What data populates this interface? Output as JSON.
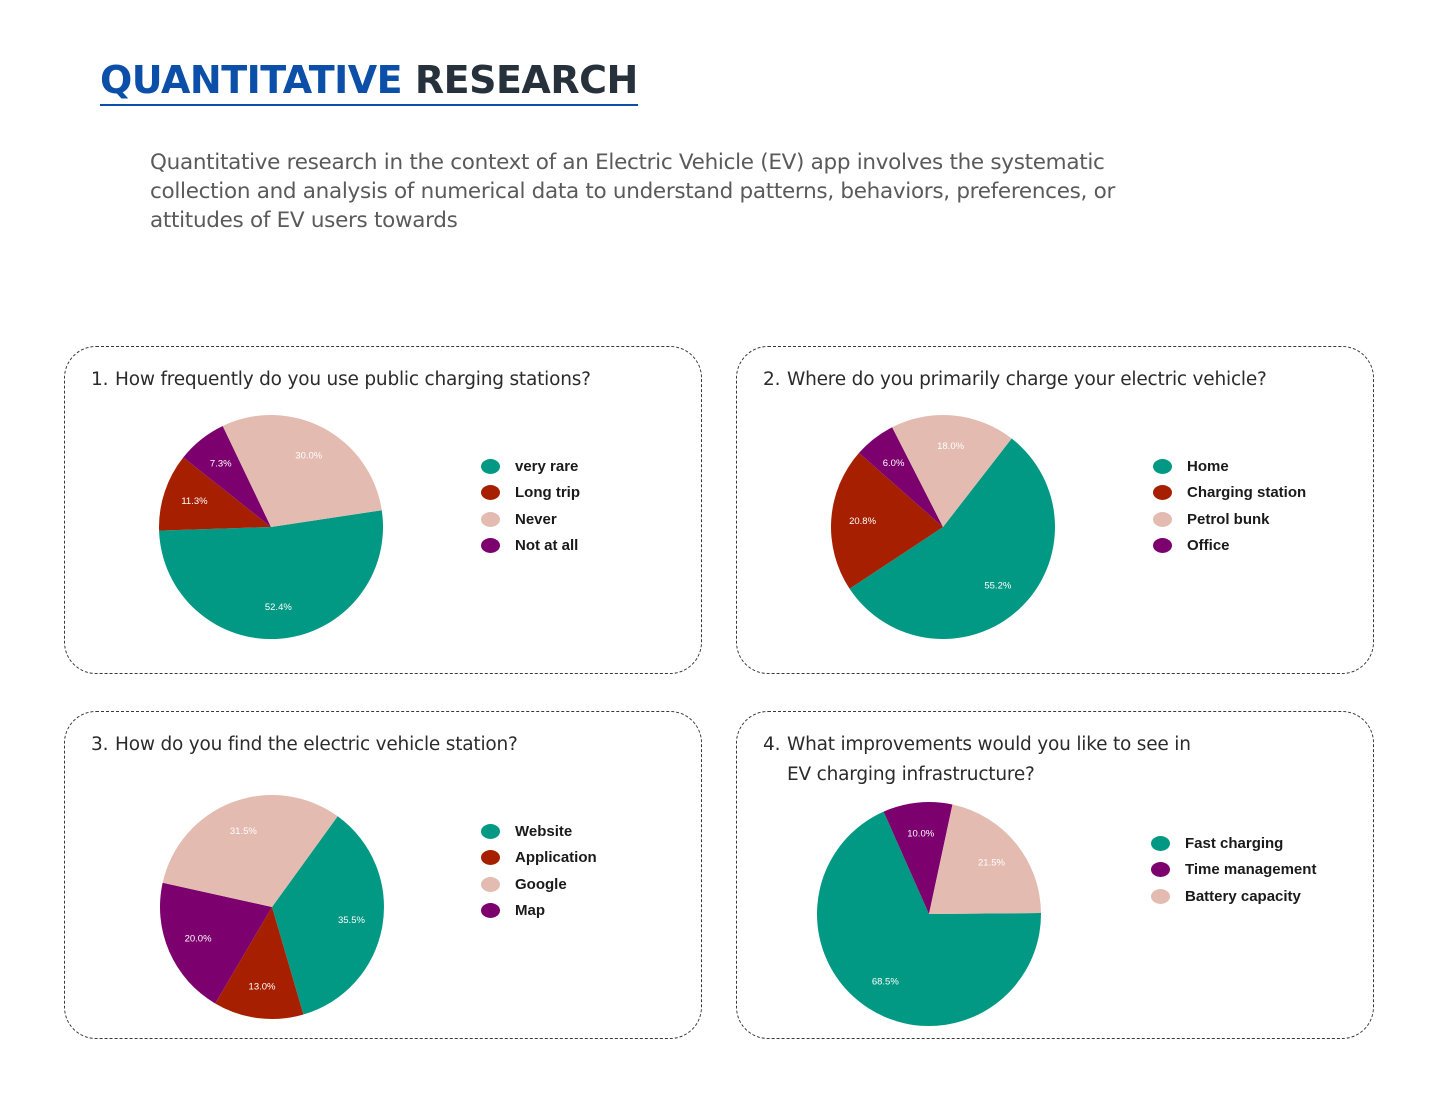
{
  "header": {
    "title_part1": "QUANTITATIVE ",
    "title_part2": "RESEARCH",
    "intro": "Quantitative research in the context of an Electric Vehicle (EV) app involves the systematic collection and analysis of numerical data to understand patterns, behaviors, preferences, or attitudes of EV users towards"
  },
  "colors": {
    "teal": "#019884",
    "rust": "#a62000",
    "pink": "#e3bbb1",
    "purple": "#7c006d",
    "title_blue": "#0b4fa8",
    "title_dark": "#26313b"
  },
  "cards": [
    {
      "number": "1.",
      "question": "How frequently do you use public charging stations?",
      "question_line2": ""
    },
    {
      "number": "2.",
      "question": "Where do you primarily charge your electric vehicle?",
      "question_line2": ""
    },
    {
      "number": "3.",
      "question": "How do you find the  electric vehicle station?",
      "question_line2": ""
    },
    {
      "number": "4.",
      "question": "What improvements would you like to see in",
      "question_line2": "EV charging infrastructure?"
    }
  ],
  "chart_data": [
    {
      "type": "pie",
      "title": "How frequently do you use public charging stations?",
      "categories": [
        "very rare",
        "Long trip",
        "Not at all",
        "Never"
      ],
      "values": [
        52.4,
        11.3,
        7.3,
        30.0
      ],
      "labels": [
        "52.4%",
        "11.3%",
        "7.3%",
        "30.0%"
      ],
      "legend": [
        {
          "label": "very rare",
          "color": "#019884"
        },
        {
          "label": "Long trip",
          "color": "#a62000"
        },
        {
          "label": "Never",
          "color": "#e3bbb1"
        },
        {
          "label": "Not at all",
          "color": "#7c006d"
        }
      ]
    },
    {
      "type": "pie",
      "title": "Where do you primarily charge your electric vehicle?",
      "categories": [
        "Home",
        "Charging station",
        "Office",
        "Petrol bunk"
      ],
      "values": [
        55.2,
        20.8,
        6.0,
        18.0
      ],
      "labels": [
        "55.2%",
        "20.8%",
        "6.0%",
        "18.0%"
      ],
      "legend": [
        {
          "label": "Home",
          "color": "#019884"
        },
        {
          "label": "Charging station",
          "color": "#a62000"
        },
        {
          "label": "Petrol bunk",
          "color": "#e3bbb1"
        },
        {
          "label": "Office",
          "color": "#7c006d"
        }
      ]
    },
    {
      "type": "pie",
      "title": "How do you find the  electric vehicle station?",
      "categories": [
        "Website",
        "Application",
        "Map",
        "Google"
      ],
      "values": [
        35.5,
        13.0,
        20.0,
        31.5
      ],
      "labels": [
        "35.5%",
        "13.0%",
        "20.0%",
        "31.5%"
      ],
      "legend": [
        {
          "label": "Website",
          "color": "#019884"
        },
        {
          "label": "Application",
          "color": "#a62000"
        },
        {
          "label": "Google",
          "color": "#e3bbb1"
        },
        {
          "label": "Map",
          "color": "#7c006d"
        }
      ]
    },
    {
      "type": "pie",
      "title": "What improvements would you like to see in EV charging infrastructure?",
      "categories": [
        "Fast charging",
        "Time management",
        "Battery capacity"
      ],
      "values": [
        68.5,
        10.0,
        21.5
      ],
      "labels": [
        "68.5%",
        "10.0%",
        "21.5%"
      ],
      "legend": [
        {
          "label": "Fast charging",
          "color": "#019884"
        },
        {
          "label": "Time management",
          "color": "#7c006d"
        },
        {
          "label": "Battery capacity",
          "color": "#e3bbb1"
        }
      ]
    }
  ]
}
